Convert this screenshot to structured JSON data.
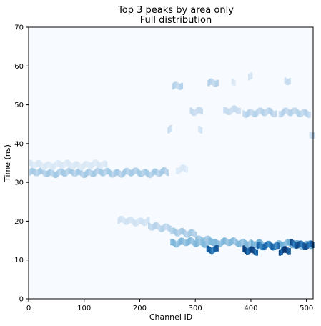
{
  "chart_data": {
    "type": "heatmap",
    "title": "Top 3 peaks by area only",
    "subtitle": "Full distribution",
    "xlabel": "Channel ID",
    "ylabel": "Time (ns)",
    "xlim": [
      0,
      512
    ],
    "ylim": [
      0,
      70
    ],
    "xticks": [
      0,
      100,
      200,
      300,
      400,
      500
    ],
    "yticks": [
      0,
      10,
      20,
      30,
      40,
      50,
      60,
      70
    ],
    "colormap": "Blues",
    "colors": {
      "background": "#f7fbff",
      "light": "#c6dbef",
      "mid": "#6baed6",
      "dark": "#2171b5",
      "darkest": "#08306b"
    },
    "segments": [
      {
        "x0": 0,
        "x1": 250,
        "y": 32.5,
        "intensity": 0.35
      },
      {
        "x0": 0,
        "x1": 140,
        "y": 34.5,
        "intensity": 0.15
      },
      {
        "x0": 160,
        "x1": 215,
        "y": 20.0,
        "intensity": 0.2
      },
      {
        "x0": 215,
        "x1": 255,
        "y": 18.5,
        "intensity": 0.3
      },
      {
        "x0": 255,
        "x1": 300,
        "y": 17.0,
        "intensity": 0.35
      },
      {
        "x0": 300,
        "x1": 330,
        "y": 15.0,
        "intensity": 0.4
      },
      {
        "x0": 330,
        "x1": 400,
        "y": 14.5,
        "intensity": 0.45
      },
      {
        "x0": 400,
        "x1": 512,
        "y": 14.0,
        "intensity": 0.5
      },
      {
        "x0": 255,
        "x1": 330,
        "y": 14.5,
        "intensity": 0.45
      },
      {
        "x0": 320,
        "x1": 340,
        "y": 12.5,
        "intensity": 0.85
      },
      {
        "x0": 385,
        "x1": 410,
        "y": 12.5,
        "intensity": 0.95
      },
      {
        "x0": 410,
        "x1": 450,
        "y": 13.5,
        "intensity": 0.8
      },
      {
        "x0": 450,
        "x1": 470,
        "y": 12.5,
        "intensity": 1.0
      },
      {
        "x0": 470,
        "x1": 512,
        "y": 14.0,
        "intensity": 0.9
      },
      {
        "x0": 258,
        "x1": 275,
        "y": 55.0,
        "intensity": 0.3
      },
      {
        "x0": 322,
        "x1": 340,
        "y": 55.5,
        "intensity": 0.3
      },
      {
        "x0": 290,
        "x1": 312,
        "y": 48.5,
        "intensity": 0.25
      },
      {
        "x0": 350,
        "x1": 380,
        "y": 48.5,
        "intensity": 0.25
      },
      {
        "x0": 385,
        "x1": 445,
        "y": 48.0,
        "intensity": 0.3
      },
      {
        "x0": 450,
        "x1": 505,
        "y": 48.0,
        "intensity": 0.3
      },
      {
        "x0": 460,
        "x1": 470,
        "y": 56.0,
        "intensity": 0.25
      },
      {
        "x0": 395,
        "x1": 400,
        "y": 57.0,
        "intensity": 0.2
      },
      {
        "x0": 365,
        "x1": 370,
        "y": 56.0,
        "intensity": 0.15
      },
      {
        "x0": 250,
        "x1": 255,
        "y": 43.5,
        "intensity": 0.25
      },
      {
        "x0": 305,
        "x1": 310,
        "y": 43.5,
        "intensity": 0.2
      },
      {
        "x0": 505,
        "x1": 512,
        "y": 42.5,
        "intensity": 0.25
      },
      {
        "x0": 265,
        "x1": 285,
        "y": 33.5,
        "intensity": 0.15
      }
    ]
  }
}
